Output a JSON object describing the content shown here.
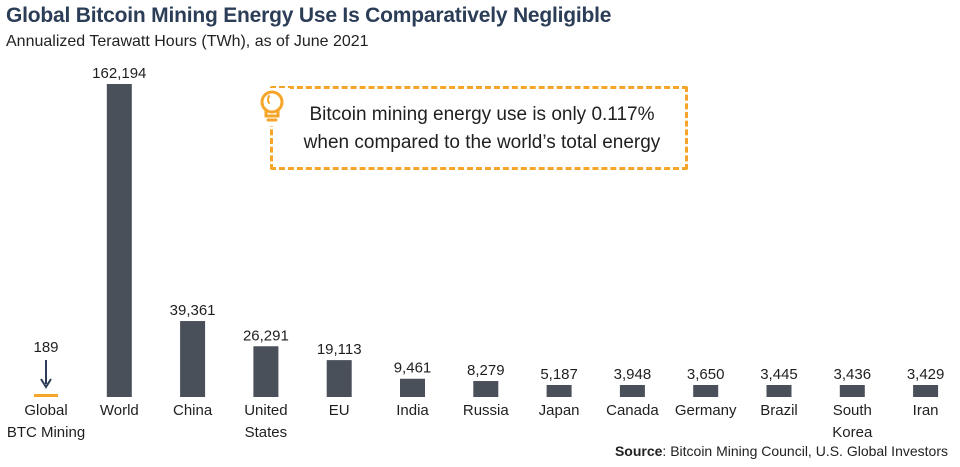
{
  "title": "Global Bitcoin Mining Energy Use Is Comparatively Negligible",
  "subtitle": "Annualized Terawatt Hours (TWh), as of June 2021",
  "callout": {
    "line1": "Bitcoin mining energy use is only 0.117%",
    "line2": "when compared to the world’s total energy",
    "icon": "lightbulb-icon"
  },
  "source": {
    "label": "Source",
    "text": ": Bitcoin Mining Council, U.S. Global Investors"
  },
  "colors": {
    "bar": "#4a5059",
    "highlight": "#f5a52a",
    "title": "#2b3d57"
  },
  "chart_data": {
    "type": "bar",
    "title": "Global Bitcoin Mining Energy Use Is Comparatively Negligible",
    "subtitle": "Annualized Terawatt Hours (TWh), as of June 2021",
    "xlabel": "",
    "ylabel": "",
    "categories": [
      [
        "Global",
        "BTC Mining"
      ],
      [
        "World"
      ],
      [
        "China"
      ],
      [
        "United",
        "States"
      ],
      [
        "EU"
      ],
      [
        "India"
      ],
      [
        "Russia"
      ],
      [
        "Japan"
      ],
      [
        "Canada"
      ],
      [
        "Germany"
      ],
      [
        "Brazil"
      ],
      [
        "South",
        "Korea"
      ],
      [
        "Iran"
      ]
    ],
    "values": [
      189,
      162194,
      39361,
      26291,
      19113,
      9461,
      8279,
      5187,
      3948,
      3650,
      3445,
      3436,
      3429
    ],
    "value_labels": [
      "189",
      "162,194",
      "39,361",
      "26,291",
      "19,113",
      "9,461",
      "8,279",
      "5,187",
      "3,948",
      "3,650",
      "3,445",
      "3,436",
      "3,429"
    ],
    "highlight_index": 0,
    "ylim": [
      0,
      162194
    ],
    "grid": false,
    "legend": "none"
  }
}
